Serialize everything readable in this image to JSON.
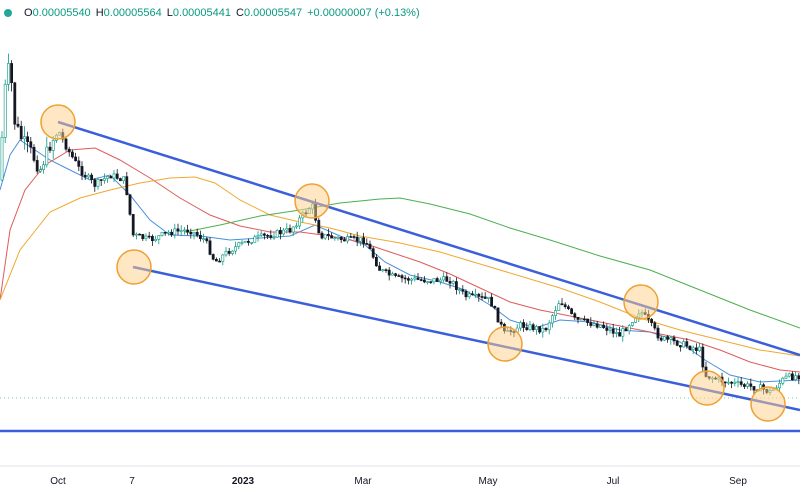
{
  "legend": {
    "open_label": "O",
    "open": "0.00005540",
    "high_label": "H",
    "high": "0.00005564",
    "low_label": "L",
    "low": "0.00005441",
    "close_label": "C",
    "close": "0.00005547",
    "change": "+0.00000007 (+0.13%)"
  },
  "colors": {
    "up": "#089981",
    "down": "#131722",
    "trendline": "#3a5fd9",
    "ma_blue": "#4a90d9",
    "ma_red": "#e05a5a",
    "ma_orange": "#f0a830",
    "ma_green": "#4caf50",
    "highlight_fill": "#ffd08a",
    "highlight_stroke": "#f0a030"
  },
  "chart_data": {
    "type": "candlestick",
    "x_axis_labels": [
      {
        "label": "Oct",
        "bold": false
      },
      {
        "label": "7",
        "bold": false
      },
      {
        "label": "2023",
        "bold": true
      },
      {
        "label": "Mar",
        "bold": false
      },
      {
        "label": "May",
        "bold": false
      },
      {
        "label": "Jul",
        "bold": false
      },
      {
        "label": "Sep",
        "bold": false
      }
    ],
    "annotations": {
      "upper_trendline": "from Oct swing high down to Sep",
      "lower_trendline": "from early Dec swing low down to Sep",
      "horizontal_support": true,
      "touch_points_highlighted": 7
    },
    "moving_averages": [
      "blue",
      "red",
      "orange",
      "green"
    ],
    "grid": false
  }
}
